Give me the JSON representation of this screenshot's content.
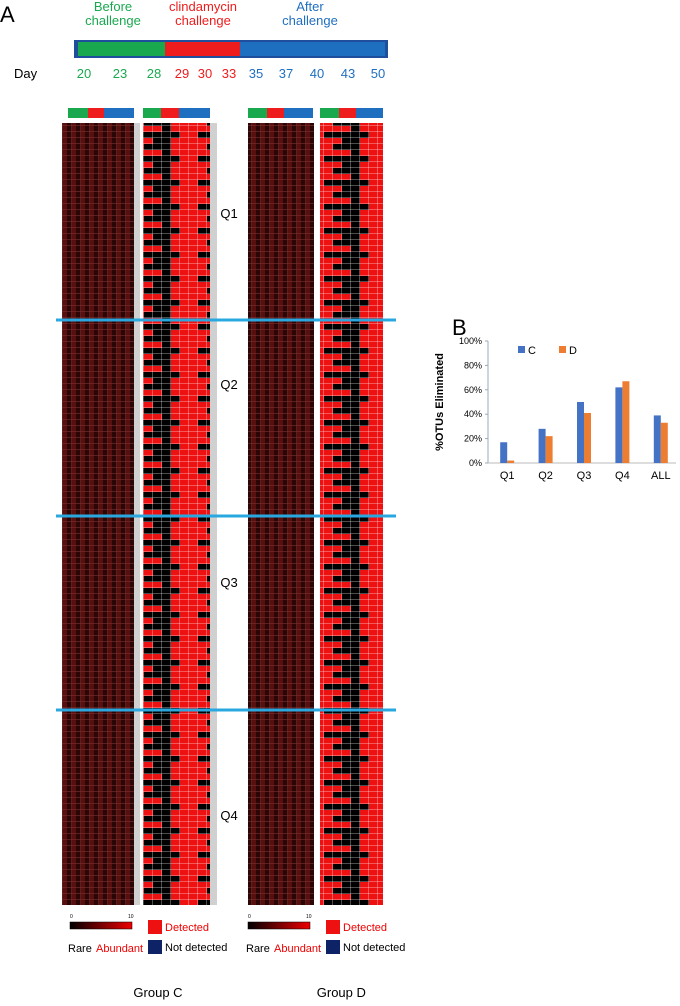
{
  "panel_a": {
    "label": "A",
    "day_label": "Day",
    "phases": [
      {
        "label_lines": [
          "Before",
          "challenge"
        ],
        "color": "#1aa84f",
        "days": [
          20,
          23,
          28
        ]
      },
      {
        "label_lines": [
          "clindamycin",
          "challenge"
        ],
        "color": "#ee1c1c",
        "days": [
          29,
          30,
          33
        ]
      },
      {
        "label_lines": [
          "After",
          "challenge"
        ],
        "color": "#1f6fc1",
        "days": [
          35,
          37,
          40,
          43,
          50
        ]
      }
    ],
    "quartiles": [
      "Q1",
      "Q2",
      "Q3",
      "Q4"
    ],
    "groups": [
      {
        "name": "Group C",
        "scale_min": "0",
        "scale_max": "10",
        "rare": "Rare",
        "abundant": "Abundant",
        "detected": "Detected",
        "not_detected": "Not detected"
      },
      {
        "name": "Group D",
        "scale_min": "0",
        "scale_max": "10",
        "rare": "Rare",
        "abundant": "Abundant",
        "detected": "Detected",
        "not_detected": "Not detected"
      }
    ]
  },
  "chart_data": {
    "type": "bar",
    "panel_label": "B",
    "y_label": "%OTUs Eliminated",
    "categories": [
      "Q1",
      "Q2",
      "Q3",
      "Q4",
      "ALL"
    ],
    "series": [
      {
        "name": "C",
        "color": "#4472c4",
        "values": [
          17,
          28,
          50,
          62,
          39
        ]
      },
      {
        "name": "D",
        "color": "#ed7d31",
        "values": [
          2,
          22,
          41,
          67,
          33
        ]
      }
    ],
    "ylim": [
      0,
      100
    ],
    "yticks": [
      {
        "value": 0,
        "label": "0%"
      },
      {
        "value": 20,
        "label": "20%"
      },
      {
        "value": 40,
        "label": "40%"
      },
      {
        "value": 60,
        "label": "60%"
      },
      {
        "value": 80,
        "label": "80%"
      },
      {
        "value": 100,
        "label": "100%"
      }
    ],
    "grid": false
  }
}
